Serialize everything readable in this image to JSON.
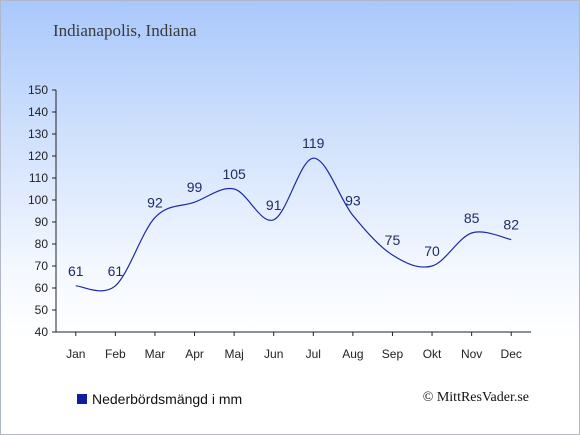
{
  "header": {
    "location": "Indianapolis, Indiana"
  },
  "legend": {
    "label": "Nederbördsmängd i mm"
  },
  "footer": {
    "copyright": "© MittResVader.se"
  },
  "colors": {
    "series": "#1b2aa6",
    "legend_swatch": "#0f1f9c",
    "label": "#1d2c63"
  },
  "chart_data": {
    "type": "line",
    "categories": [
      "Jan",
      "Feb",
      "Mar",
      "Apr",
      "Maj",
      "Jun",
      "Jul",
      "Aug",
      "Sep",
      "Okt",
      "Nov",
      "Dec"
    ],
    "series": [
      {
        "name": "Nederbördsmängd i mm",
        "values": [
          61,
          61,
          92,
          99,
          105,
          91,
          119,
          93,
          75,
          70,
          85,
          82
        ]
      }
    ],
    "ylim": [
      40,
      150
    ],
    "yticks": [
      40,
      50,
      60,
      70,
      80,
      90,
      100,
      110,
      120,
      130,
      140,
      150
    ],
    "grid": false,
    "legend_position": "bottom-left"
  }
}
